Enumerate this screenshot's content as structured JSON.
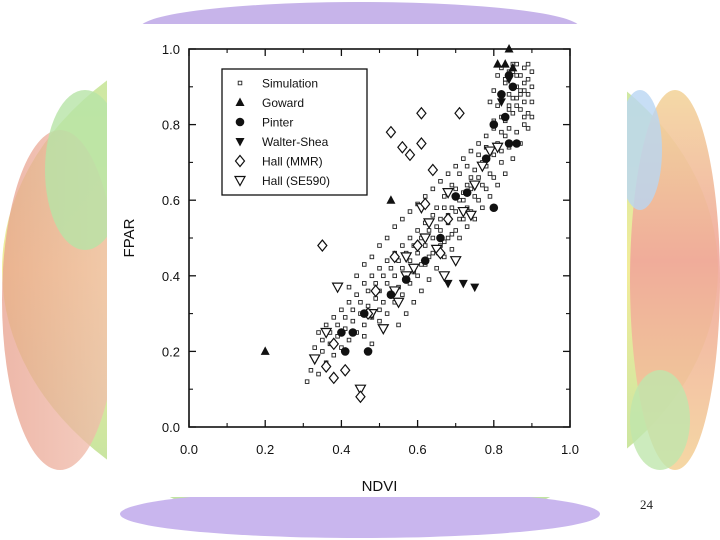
{
  "slide": {
    "page_number": "24"
  },
  "chart_data": {
    "type": "scatter",
    "title": "",
    "xlabel": "NDVI",
    "ylabel": "FPAR",
    "xlim": [
      0.0,
      1.0
    ],
    "ylim": [
      0.0,
      1.0
    ],
    "x_ticks": [
      "0.0",
      "0.2",
      "0.4",
      "0.6",
      "0.8",
      "1.0"
    ],
    "y_ticks": [
      "0.0",
      "0.2",
      "0.4",
      "0.6",
      "0.8",
      "1.0"
    ],
    "legend_position": "top-left",
    "grid": false,
    "series": [
      {
        "name": "Simulation",
        "marker": "small-open-square",
        "points": [
          [
            0.31,
            0.12
          ],
          [
            0.32,
            0.15
          ],
          [
            0.33,
            0.18
          ],
          [
            0.34,
            0.14
          ],
          [
            0.35,
            0.2
          ],
          [
            0.36,
            0.17
          ],
          [
            0.37,
            0.22
          ],
          [
            0.38,
            0.19
          ],
          [
            0.39,
            0.24
          ],
          [
            0.4,
            0.21
          ],
          [
            0.41,
            0.26
          ],
          [
            0.42,
            0.23
          ],
          [
            0.43,
            0.28
          ],
          [
            0.44,
            0.25
          ],
          [
            0.45,
            0.3
          ],
          [
            0.46,
            0.27
          ],
          [
            0.47,
            0.32
          ],
          [
            0.48,
            0.29
          ],
          [
            0.49,
            0.34
          ],
          [
            0.5,
            0.31
          ],
          [
            0.5,
            0.36
          ],
          [
            0.51,
            0.33
          ],
          [
            0.52,
            0.38
          ],
          [
            0.53,
            0.35
          ],
          [
            0.54,
            0.4
          ],
          [
            0.55,
            0.37
          ],
          [
            0.56,
            0.42
          ],
          [
            0.57,
            0.39
          ],
          [
            0.58,
            0.44
          ],
          [
            0.59,
            0.41
          ],
          [
            0.6,
            0.46
          ],
          [
            0.61,
            0.43
          ],
          [
            0.62,
            0.48
          ],
          [
            0.63,
            0.45
          ],
          [
            0.64,
            0.5
          ],
          [
            0.65,
            0.47
          ],
          [
            0.66,
            0.52
          ],
          [
            0.67,
            0.49
          ],
          [
            0.68,
            0.54
          ],
          [
            0.69,
            0.51
          ],
          [
            0.7,
            0.57
          ],
          [
            0.71,
            0.55
          ],
          [
            0.72,
            0.6
          ],
          [
            0.73,
            0.58
          ],
          [
            0.74,
            0.63
          ],
          [
            0.75,
            0.61
          ],
          [
            0.76,
            0.66
          ],
          [
            0.77,
            0.64
          ],
          [
            0.78,
            0.69
          ],
          [
            0.79,
            0.67
          ],
          [
            0.8,
            0.72
          ],
          [
            0.81,
            0.75
          ],
          [
            0.82,
            0.78
          ],
          [
            0.83,
            0.81
          ],
          [
            0.84,
            0.84
          ],
          [
            0.85,
            0.87
          ],
          [
            0.86,
            0.9
          ],
          [
            0.87,
            0.93
          ],
          [
            0.88,
            0.95
          ],
          [
            0.89,
            0.92
          ],
          [
            0.79,
            0.86
          ],
          [
            0.8,
            0.89
          ],
          [
            0.81,
            0.93
          ],
          [
            0.82,
            0.95
          ],
          [
            0.83,
            0.91
          ],
          [
            0.84,
            0.88
          ],
          [
            0.85,
            0.94
          ],
          [
            0.86,
            0.96
          ],
          [
            0.87,
            0.89
          ],
          [
            0.88,
            0.86
          ],
          [
            0.89,
            0.83
          ],
          [
            0.9,
            0.94
          ],
          [
            0.8,
            0.81
          ],
          [
            0.81,
            0.85
          ],
          [
            0.82,
            0.87
          ],
          [
            0.83,
            0.92
          ],
          [
            0.84,
            0.79
          ],
          [
            0.85,
            0.83
          ],
          [
            0.86,
            0.85
          ],
          [
            0.87,
            0.88
          ],
          [
            0.88,
            0.91
          ],
          [
            0.89,
            0.96
          ],
          [
            0.9,
            0.9
          ],
          [
            0.84,
            0.94
          ],
          [
            0.85,
            0.96
          ],
          [
            0.86,
            0.93
          ],
          [
            0.87,
            0.84
          ],
          [
            0.88,
            0.8
          ],
          [
            0.83,
            0.77
          ],
          [
            0.82,
            0.73
          ],
          [
            0.78,
            0.74
          ],
          [
            0.77,
            0.7
          ],
          [
            0.76,
            0.72
          ],
          [
            0.75,
            0.68
          ],
          [
            0.74,
            0.66
          ],
          [
            0.73,
            0.64
          ],
          [
            0.72,
            0.62
          ],
          [
            0.71,
            0.6
          ],
          [
            0.7,
            0.63
          ],
          [
            0.69,
            0.58
          ],
          [
            0.68,
            0.56
          ],
          [
            0.67,
            0.58
          ],
          [
            0.66,
            0.55
          ],
          [
            0.65,
            0.53
          ],
          [
            0.64,
            0.56
          ],
          [
            0.63,
            0.52
          ],
          [
            0.62,
            0.54
          ],
          [
            0.61,
            0.5
          ],
          [
            0.6,
            0.52
          ],
          [
            0.59,
            0.48
          ],
          [
            0.58,
            0.5
          ],
          [
            0.57,
            0.46
          ],
          [
            0.56,
            0.48
          ],
          [
            0.55,
            0.44
          ],
          [
            0.54,
            0.46
          ],
          [
            0.53,
            0.42
          ],
          [
            0.52,
            0.44
          ],
          [
            0.51,
            0.4
          ],
          [
            0.5,
            0.42
          ],
          [
            0.49,
            0.38
          ],
          [
            0.48,
            0.4
          ],
          [
            0.47,
            0.36
          ],
          [
            0.46,
            0.38
          ],
          [
            0.45,
            0.33
          ],
          [
            0.44,
            0.35
          ],
          [
            0.43,
            0.31
          ],
          [
            0.42,
            0.33
          ],
          [
            0.41,
            0.29
          ],
          [
            0.4,
            0.31
          ],
          [
            0.39,
            0.27
          ],
          [
            0.38,
            0.29
          ],
          [
            0.37,
            0.25
          ],
          [
            0.36,
            0.27
          ],
          [
            0.35,
            0.23
          ],
          [
            0.34,
            0.25
          ],
          [
            0.33,
            0.21
          ],
          [
            0.46,
            0.24
          ],
          [
            0.48,
            0.22
          ],
          [
            0.5,
            0.28
          ],
          [
            0.52,
            0.3
          ],
          [
            0.54,
            0.33
          ],
          [
            0.56,
            0.35
          ],
          [
            0.58,
            0.38
          ],
          [
            0.6,
            0.4
          ],
          [
            0.62,
            0.43
          ],
          [
            0.64,
            0.46
          ],
          [
            0.66,
            0.48
          ],
          [
            0.68,
            0.5
          ],
          [
            0.7,
            0.52
          ],
          [
            0.72,
            0.55
          ],
          [
            0.74,
            0.57
          ],
          [
            0.76,
            0.6
          ],
          [
            0.78,
            0.63
          ],
          [
            0.8,
            0.66
          ],
          [
            0.82,
            0.7
          ],
          [
            0.84,
            0.74
          ],
          [
            0.86,
            0.78
          ],
          [
            0.88,
            0.82
          ],
          [
            0.9,
            0.86
          ],
          [
            0.89,
            0.88
          ],
          [
            0.42,
            0.37
          ],
          [
            0.44,
            0.4
          ],
          [
            0.46,
            0.43
          ],
          [
            0.48,
            0.45
          ],
          [
            0.5,
            0.48
          ],
          [
            0.52,
            0.5
          ],
          [
            0.54,
            0.53
          ],
          [
            0.56,
            0.55
          ],
          [
            0.58,
            0.57
          ],
          [
            0.6,
            0.59
          ],
          [
            0.62,
            0.61
          ],
          [
            0.64,
            0.63
          ],
          [
            0.66,
            0.65
          ],
          [
            0.68,
            0.67
          ],
          [
            0.7,
            0.69
          ],
          [
            0.72,
            0.71
          ],
          [
            0.74,
            0.73
          ],
          [
            0.76,
            0.75
          ],
          [
            0.78,
            0.77
          ],
          [
            0.8,
            0.79
          ],
          [
            0.82,
            0.82
          ],
          [
            0.84,
            0.85
          ],
          [
            0.86,
            0.87
          ],
          [
            0.88,
            0.89
          ],
          [
            0.55,
            0.27
          ],
          [
            0.57,
            0.3
          ],
          [
            0.59,
            0.33
          ],
          [
            0.61,
            0.36
          ],
          [
            0.63,
            0.39
          ],
          [
            0.65,
            0.42
          ],
          [
            0.67,
            0.45
          ],
          [
            0.69,
            0.47
          ],
          [
            0.71,
            0.5
          ],
          [
            0.73,
            0.53
          ],
          [
            0.75,
            0.55
          ],
          [
            0.77,
            0.58
          ],
          [
            0.79,
            0.61
          ],
          [
            0.81,
            0.64
          ],
          [
            0.83,
            0.67
          ],
          [
            0.85,
            0.71
          ],
          [
            0.87,
            0.75
          ],
          [
            0.89,
            0.79
          ],
          [
            0.9,
            0.82
          ],
          [
            0.65,
            0.58
          ],
          [
            0.67,
            0.61
          ],
          [
            0.69,
            0.64
          ],
          [
            0.71,
            0.67
          ],
          [
            0.73,
            0.69
          ]
        ]
      },
      {
        "name": "Goward",
        "marker": "filled-triangle-up",
        "points": [
          [
            0.2,
            0.2
          ],
          [
            0.53,
            0.6
          ],
          [
            0.84,
            1.0
          ],
          [
            0.81,
            0.96
          ],
          [
            0.83,
            0.96
          ],
          [
            0.85,
            0.95
          ]
        ]
      },
      {
        "name": "Pinter",
        "marker": "filled-circle",
        "points": [
          [
            0.4,
            0.25
          ],
          [
            0.41,
            0.2
          ],
          [
            0.43,
            0.25
          ],
          [
            0.46,
            0.3
          ],
          [
            0.47,
            0.2
          ],
          [
            0.53,
            0.35
          ],
          [
            0.57,
            0.39
          ],
          [
            0.62,
            0.44
          ],
          [
            0.66,
            0.5
          ],
          [
            0.7,
            0.61
          ],
          [
            0.73,
            0.62
          ],
          [
            0.8,
            0.58
          ],
          [
            0.78,
            0.71
          ],
          [
            0.8,
            0.8
          ],
          [
            0.83,
            0.82
          ],
          [
            0.84,
            0.75
          ],
          [
            0.86,
            0.75
          ],
          [
            0.82,
            0.88
          ],
          [
            0.85,
            0.9
          ],
          [
            0.84,
            0.93
          ]
        ]
      },
      {
        "name": "Walter-Shea",
        "marker": "filled-triangle-down",
        "points": [
          [
            0.68,
            0.38
          ],
          [
            0.72,
            0.38
          ],
          [
            0.75,
            0.37
          ],
          [
            0.82,
            0.86
          ],
          [
            0.84,
            0.92
          ]
        ]
      },
      {
        "name": "Hall (MMR)",
        "marker": "open-diamond",
        "points": [
          [
            0.35,
            0.48
          ],
          [
            0.53,
            0.78
          ],
          [
            0.56,
            0.74
          ],
          [
            0.58,
            0.72
          ],
          [
            0.61,
            0.75
          ],
          [
            0.61,
            0.83
          ],
          [
            0.71,
            0.83
          ],
          [
            0.64,
            0.68
          ],
          [
            0.62,
            0.59
          ],
          [
            0.68,
            0.55
          ],
          [
            0.54,
            0.45
          ],
          [
            0.49,
            0.36
          ],
          [
            0.47,
            0.3
          ],
          [
            0.38,
            0.22
          ],
          [
            0.36,
            0.16
          ],
          [
            0.38,
            0.13
          ],
          [
            0.41,
            0.15
          ],
          [
            0.45,
            0.08
          ],
          [
            0.6,
            0.48
          ],
          [
            0.66,
            0.46
          ]
        ]
      },
      {
        "name": "Hall (SE590)",
        "marker": "open-triangle-down",
        "points": [
          [
            0.33,
            0.18
          ],
          [
            0.36,
            0.25
          ],
          [
            0.39,
            0.37
          ],
          [
            0.45,
            0.1
          ],
          [
            0.48,
            0.3
          ],
          [
            0.51,
            0.26
          ],
          [
            0.54,
            0.36
          ],
          [
            0.57,
            0.4
          ],
          [
            0.59,
            0.42
          ],
          [
            0.61,
            0.58
          ],
          [
            0.62,
            0.5
          ],
          [
            0.65,
            0.47
          ],
          [
            0.67,
            0.4
          ],
          [
            0.7,
            0.44
          ],
          [
            0.72,
            0.57
          ],
          [
            0.74,
            0.56
          ],
          [
            0.77,
            0.69
          ],
          [
            0.79,
            0.73
          ],
          [
            0.81,
            0.74
          ],
          [
            0.55,
            0.33
          ],
          [
            0.57,
            0.45
          ],
          [
            0.63,
            0.54
          ],
          [
            0.68,
            0.62
          ],
          [
            0.75,
            0.64
          ]
        ]
      }
    ]
  }
}
